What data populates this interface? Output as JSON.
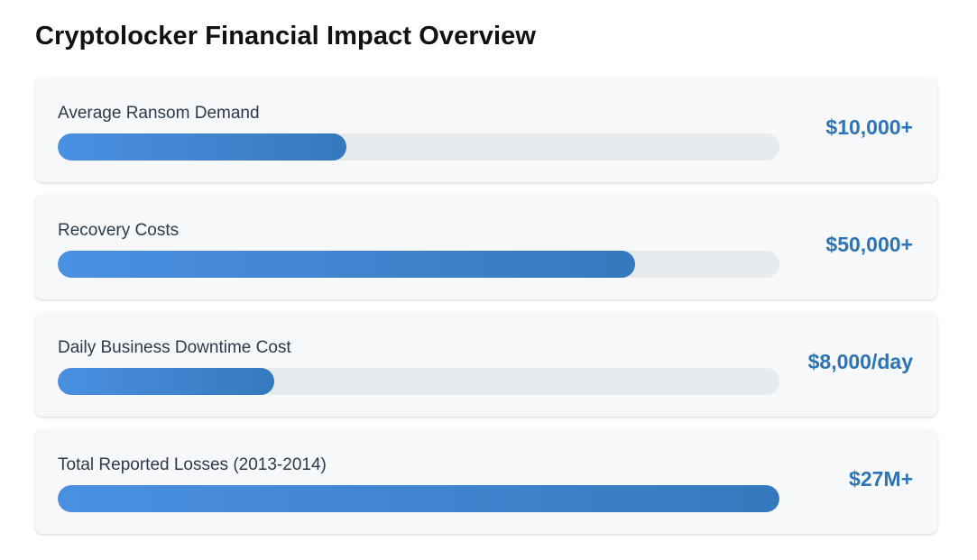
{
  "page": {
    "title": "Cryptolocker Financial Impact Overview"
  },
  "colors": {
    "bar_start": "#4a90e2",
    "bar_end": "#3579bd",
    "track": "#e8ebee",
    "value_text": "#2e74b5",
    "card_background": "#f6f8fa"
  },
  "chart_data": {
    "type": "bar",
    "orientation": "horizontal",
    "categories": [
      "Average Ransom Demand",
      "Recovery Costs",
      "Daily Business Downtime Cost",
      "Total Reported Losses (2013-2014)"
    ],
    "value_labels": [
      "$10,000+",
      "$50,000+",
      "$8,000/day",
      "$27M+"
    ],
    "fill_fractions": [
      0.4,
      0.8,
      0.3,
      1.0
    ]
  },
  "metrics": [
    {
      "label": "Average Ransom Demand",
      "value": "$10,000+",
      "fill": 0.4
    },
    {
      "label": "Recovery Costs",
      "value": "$50,000+",
      "fill": 0.8
    },
    {
      "label": "Daily Business Downtime Cost",
      "value": "$8,000/day",
      "fill": 0.3
    },
    {
      "label": "Total Reported Losses (2013-2014)",
      "value": "$27M+",
      "fill": 1.0
    }
  ]
}
